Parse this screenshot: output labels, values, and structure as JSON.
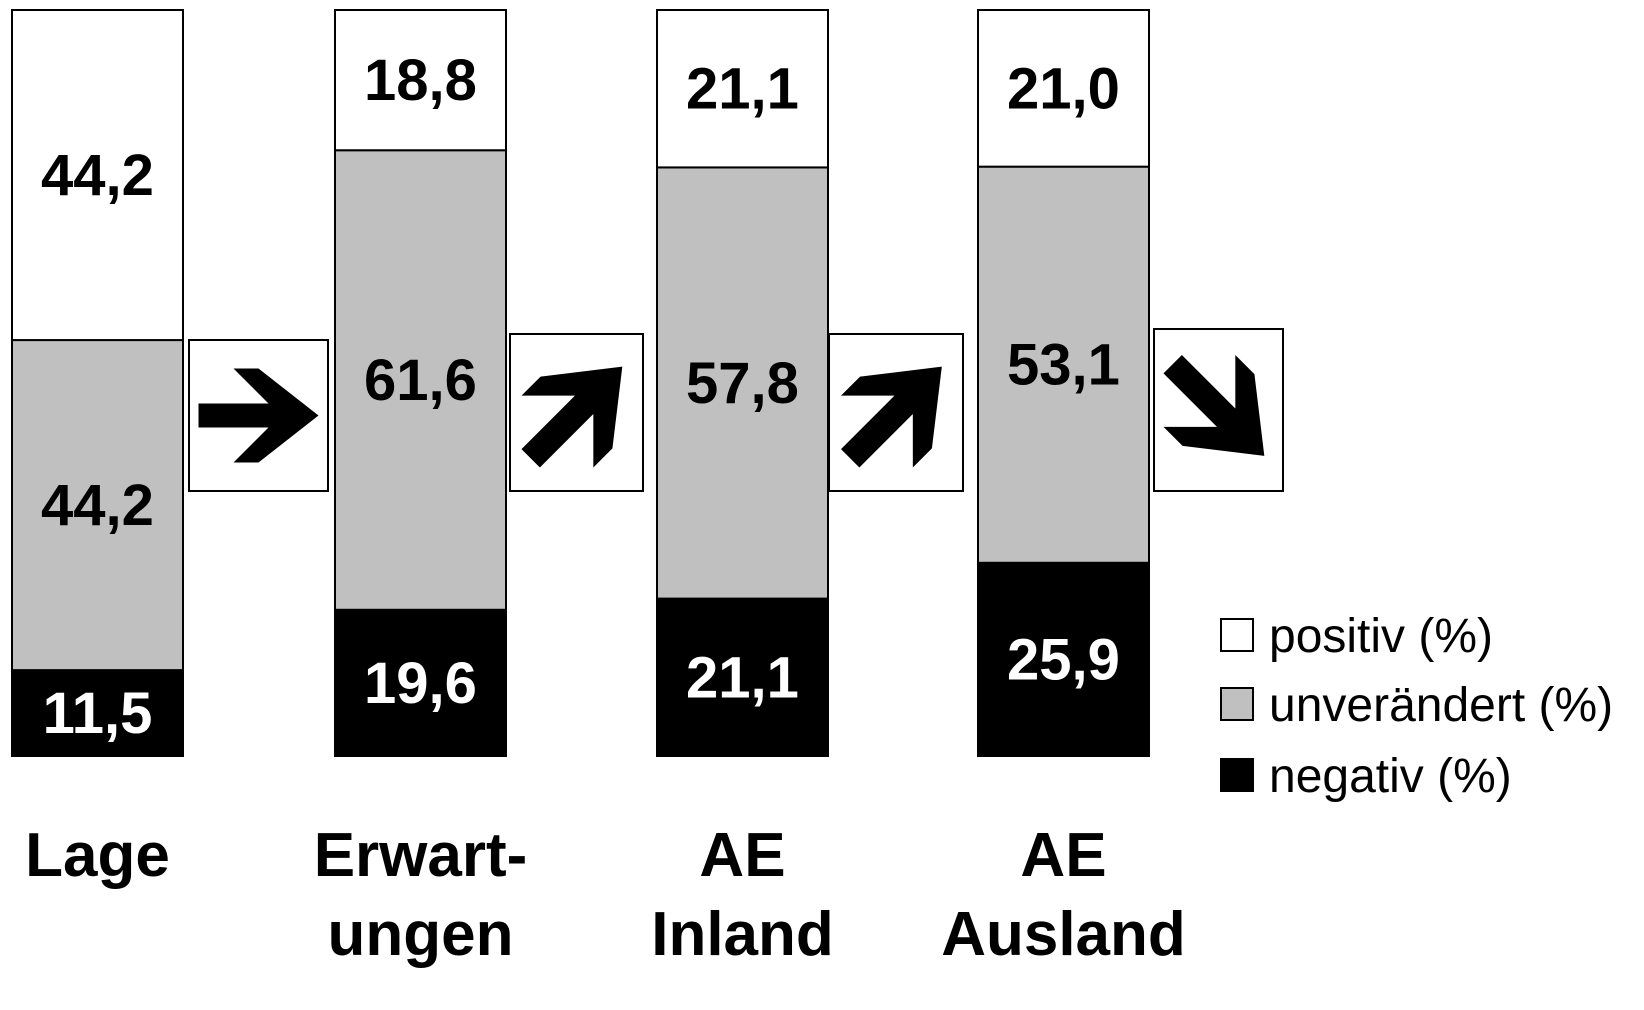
{
  "chart_data": {
    "type": "bar",
    "stacked": true,
    "normalized_percent": true,
    "categories": [
      "Lage",
      "Erwart-\nungen",
      "AE\nInland",
      "AE\nAusland"
    ],
    "series": [
      {
        "name": "negativ (%)",
        "values": [
          11.5,
          19.6,
          21.1,
          25.9
        ],
        "labels": [
          "11,5",
          "19,6",
          "21,1",
          "25,9"
        ],
        "color": "#000000",
        "label_color": "#ffffff"
      },
      {
        "name": "unverändert (%)",
        "values": [
          44.2,
          61.6,
          57.8,
          53.1
        ],
        "labels": [
          "44,2",
          "61,6",
          "57,8",
          "53,1"
        ],
        "color": "#c0c0c0",
        "label_color": "#000000"
      },
      {
        "name": "positiv (%)",
        "values": [
          44.2,
          18.8,
          21.1,
          21.0
        ],
        "labels": [
          "44,2",
          "18,8",
          "21,1",
          "21,0"
        ],
        "color": "#ffffff",
        "label_color": "#000000"
      }
    ],
    "arrows": [
      "right",
      "up-right",
      "up-right",
      "down-right"
    ],
    "legend_position": "right",
    "legend": [
      {
        "label": "positiv (%)",
        "color": "#ffffff"
      },
      {
        "label": "unverändert (%)",
        "color": "#c0c0c0"
      },
      {
        "label": "negativ (%)",
        "color": "#000000"
      }
    ],
    "grid": false,
    "title": "",
    "xlabel": "",
    "ylabel": ""
  }
}
